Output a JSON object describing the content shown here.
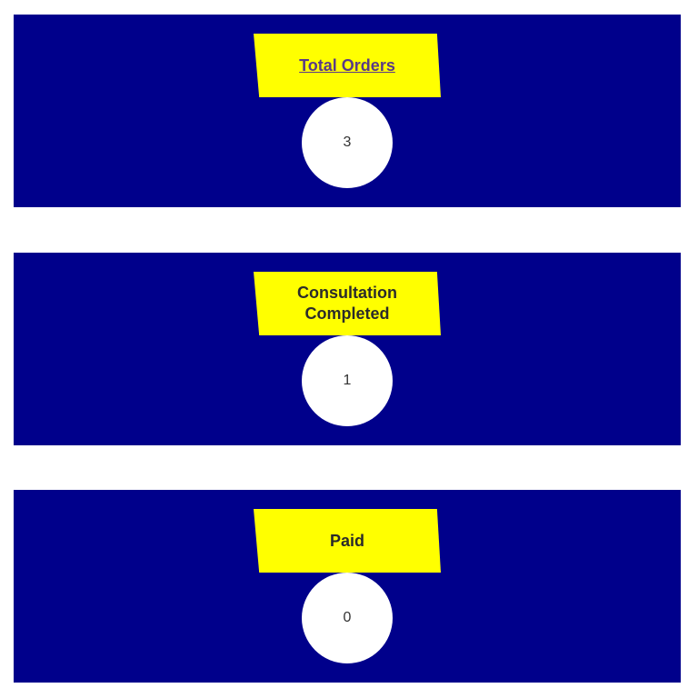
{
  "colors": {
    "card_background": "#00008b",
    "label_background": "#ffff00",
    "circle_background": "#ffffff",
    "link_text": "#5a3a86"
  },
  "cards": [
    {
      "label": "Total Orders",
      "value": "3"
    },
    {
      "label": "Consultation Completed",
      "value": "1"
    },
    {
      "label": "Paid",
      "value": "0"
    }
  ]
}
